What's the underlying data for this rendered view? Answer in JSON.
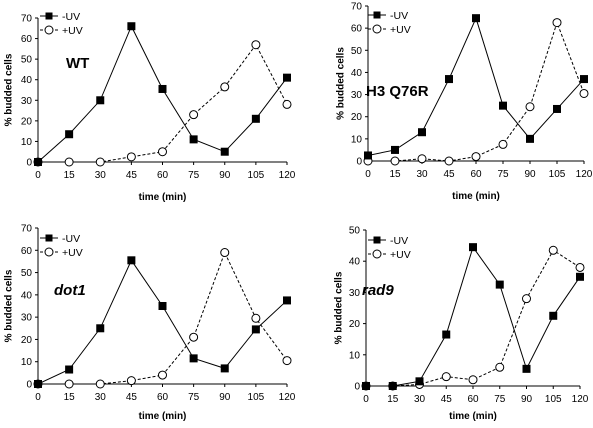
{
  "chart_data": [
    {
      "type": "line",
      "annotation": "WT",
      "annotation_italic": false,
      "x": [
        0,
        15,
        30,
        45,
        60,
        75,
        90,
        105,
        120
      ],
      "xlabel": "time (min)",
      "ylabel": "% budded cells",
      "ylim": [
        0,
        70
      ],
      "yticks": [
        0,
        10,
        20,
        30,
        40,
        50,
        60,
        70
      ],
      "grid": false,
      "legend": "top-left",
      "series": [
        {
          "name": "-UV",
          "marker": "filled-square",
          "line": "solid",
          "values": [
            0,
            13.5,
            30,
            66,
            35.5,
            11,
            5,
            21,
            41
          ]
        },
        {
          "name": "+UV",
          "marker": "open-circle",
          "line": "dashed",
          "values": [
            0,
            0,
            0,
            2.5,
            5,
            23,
            36.5,
            57,
            28
          ]
        }
      ]
    },
    {
      "type": "line",
      "annotation": "H3 Q76R",
      "annotation_italic": false,
      "x": [
        0,
        15,
        30,
        45,
        60,
        75,
        90,
        105,
        120
      ],
      "xlabel": "time (min)",
      "ylabel": "% budded cells",
      "ylim": [
        0,
        70
      ],
      "yticks": [
        0,
        10,
        20,
        30,
        40,
        50,
        60,
        70
      ],
      "grid": false,
      "legend": "top-center",
      "series": [
        {
          "name": "-UV",
          "marker": "filled-square",
          "line": "solid",
          "values": [
            2.5,
            5,
            13,
            37,
            64.5,
            25,
            10,
            23.5,
            37
          ]
        },
        {
          "name": "+UV",
          "marker": "open-circle",
          "line": "dashed",
          "values": [
            0,
            0,
            1,
            0,
            2,
            7.5,
            24.5,
            62.5,
            30.5
          ]
        }
      ]
    },
    {
      "type": "line",
      "annotation": "dot1",
      "annotation_italic": true,
      "x": [
        0,
        15,
        30,
        45,
        60,
        75,
        90,
        105,
        120
      ],
      "xlabel": "time (min)",
      "ylabel": "% budded cells",
      "ylim": [
        0,
        70
      ],
      "yticks": [
        0,
        10,
        20,
        30,
        40,
        50,
        60,
        70
      ],
      "grid": false,
      "legend": "top-left",
      "series": [
        {
          "name": "-UV",
          "marker": "filled-square",
          "line": "solid",
          "values": [
            0,
            6.5,
            25,
            55.5,
            35,
            11.5,
            7,
            24.5,
            37.5
          ]
        },
        {
          "name": "+UV",
          "marker": "open-circle",
          "line": "dashed",
          "values": [
            0,
            0,
            0,
            1.5,
            4,
            21,
            59,
            29.5,
            10.5
          ]
        }
      ]
    },
    {
      "type": "line",
      "annotation": "rad9",
      "annotation_italic": true,
      "x": [
        0,
        15,
        30,
        45,
        60,
        75,
        90,
        105,
        120
      ],
      "xlabel": "time (min)",
      "ylabel": "% budded cells",
      "ylim": [
        0,
        50
      ],
      "yticks": [
        0,
        10,
        20,
        30,
        40,
        50
      ],
      "grid": false,
      "legend": "top-left",
      "series": [
        {
          "name": "-UV",
          "marker": "filled-square",
          "line": "solid",
          "values": [
            0,
            0,
            1.5,
            16.5,
            44.5,
            32.5,
            5.5,
            22.5,
            35
          ]
        },
        {
          "name": "+UV",
          "marker": "open-circle",
          "line": "dashed",
          "values": [
            0,
            0,
            0.5,
            3,
            2,
            6,
            28,
            43.5,
            38
          ]
        }
      ]
    }
  ]
}
